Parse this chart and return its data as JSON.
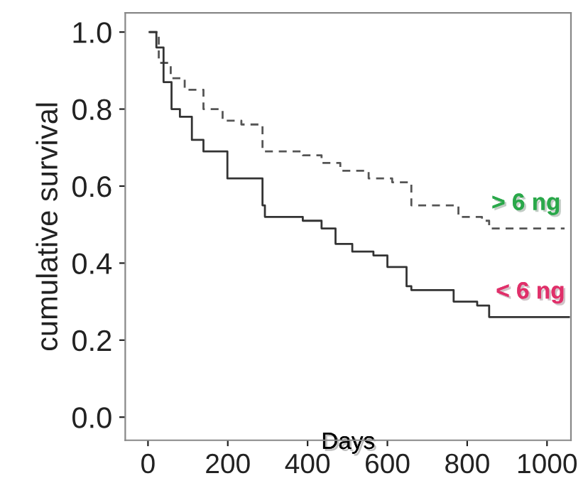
{
  "chart_data": {
    "type": "step",
    "xlabel": "Days",
    "ylabel": "cumulative survival",
    "xlim": [
      -57,
      1060
    ],
    "ylim": [
      -0.06,
      1.05
    ],
    "xticks": [
      0,
      200,
      400,
      600,
      800,
      1000
    ],
    "yticks": [
      {
        "value": 0,
        "label": "0.0"
      },
      {
        "value": 0.2,
        "label": "0.2"
      },
      {
        "value": 0.4,
        "label": "0.4"
      },
      {
        "value": 0.6,
        "label": "0.6"
      },
      {
        "value": 0.8,
        "label": "0.8"
      },
      {
        "value": 1,
        "label": "1.0"
      }
    ],
    "grid": false,
    "legend": false,
    "series": [
      {
        "name": "> 6 ng",
        "color": "#555555",
        "line_style": "dashed",
        "x": [
          4,
          27,
          57,
          92,
          139,
          187,
          234,
          287,
          317,
          388,
          435,
          482,
          553,
          612,
          660,
          719,
          778,
          837,
          855,
          1044
        ],
        "values": [
          1.0,
          0.92,
          0.88,
          0.85,
          0.8,
          0.77,
          0.76,
          0.69,
          0.69,
          0.68,
          0.66,
          0.64,
          0.62,
          0.61,
          0.55,
          0.55,
          0.52,
          0.51,
          0.49,
          0.49
        ]
      },
      {
        "name": "< 6 ng",
        "color": "#333333",
        "line_style": "solid",
        "x": [
          4,
          21,
          39,
          59,
          80,
          110,
          139,
          199,
          234,
          287,
          293,
          388,
          435,
          470,
          512,
          565,
          600,
          648,
          660,
          730,
          766,
          825,
          855,
          1055
        ],
        "values": [
          1.0,
          0.96,
          0.87,
          0.8,
          0.78,
          0.72,
          0.69,
          0.62,
          0.62,
          0.55,
          0.52,
          0.51,
          0.49,
          0.45,
          0.43,
          0.42,
          0.39,
          0.34,
          0.33,
          0.33,
          0.3,
          0.29,
          0.26,
          0.26
        ]
      }
    ]
  }
}
